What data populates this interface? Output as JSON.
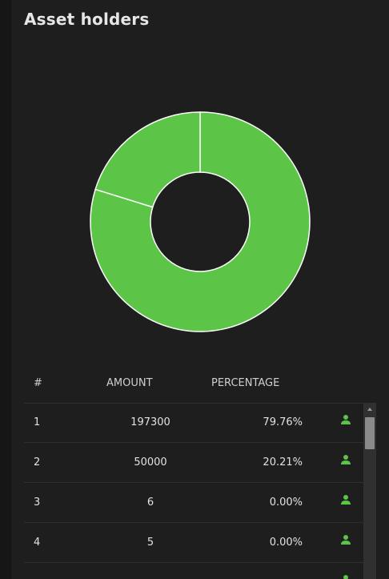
{
  "header": {
    "title": "Asset holders"
  },
  "colors": {
    "accent": "#5cc548",
    "panel": "#1e1e1e",
    "divider": "#2f2f2f"
  },
  "chart_data": {
    "type": "pie",
    "donut": true,
    "categories": [
      "1",
      "2",
      "3",
      "4"
    ],
    "values": [
      79.76,
      20.21,
      0.0,
      0.0
    ],
    "title": "",
    "color": "#5cc548"
  },
  "table": {
    "columns": [
      "#",
      "AMOUNT",
      "PERCENTAGE"
    ],
    "rows": [
      {
        "rank": "1",
        "amount": "197300",
        "percentage": "79.76%",
        "icon": "user-icon"
      },
      {
        "rank": "2",
        "amount": "50000",
        "percentage": "20.21%",
        "icon": "user-icon"
      },
      {
        "rank": "3",
        "amount": "6",
        "percentage": "0.00%",
        "icon": "user-icon"
      },
      {
        "rank": "4",
        "amount": "5",
        "percentage": "0.00%",
        "icon": "user-icon"
      },
      {
        "rank": "",
        "amount": "",
        "percentage": "",
        "icon": "user-icon"
      }
    ]
  }
}
